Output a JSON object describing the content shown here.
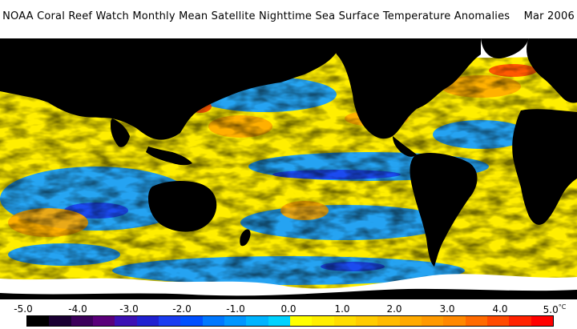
{
  "title": "NOAA Coral Reef Watch Monthly Mean Satellite Nighttime Sea Surface Temperature Anomalies    Mar 2006",
  "colors": {
    "land": "#000000",
    "ice": "#ffffff",
    "background": "#ffffff"
  },
  "legend": {
    "tick_labels": [
      "-5.0",
      "-4.0",
      "-3.0",
      "-2.0",
      "-1.0",
      "0.0",
      "1.0",
      "2.0",
      "3.0",
      "4.0",
      "5.0"
    ],
    "unit": "°C",
    "colors": [
      "#000000",
      "#1a0032",
      "#3c005a",
      "#5a007a",
      "#3c10b4",
      "#2020d0",
      "#1a3cf0",
      "#0050ff",
      "#0078ff",
      "#0096ff",
      "#00b4ff",
      "#00d2ff",
      "#ffff00",
      "#ffee00",
      "#ffdd00",
      "#ffcc00",
      "#ffbb00",
      "#ffaa00",
      "#ff9900",
      "#ff8800",
      "#ff6a00",
      "#ff4a00",
      "#ff2200",
      "#ff0000"
    ]
  }
}
